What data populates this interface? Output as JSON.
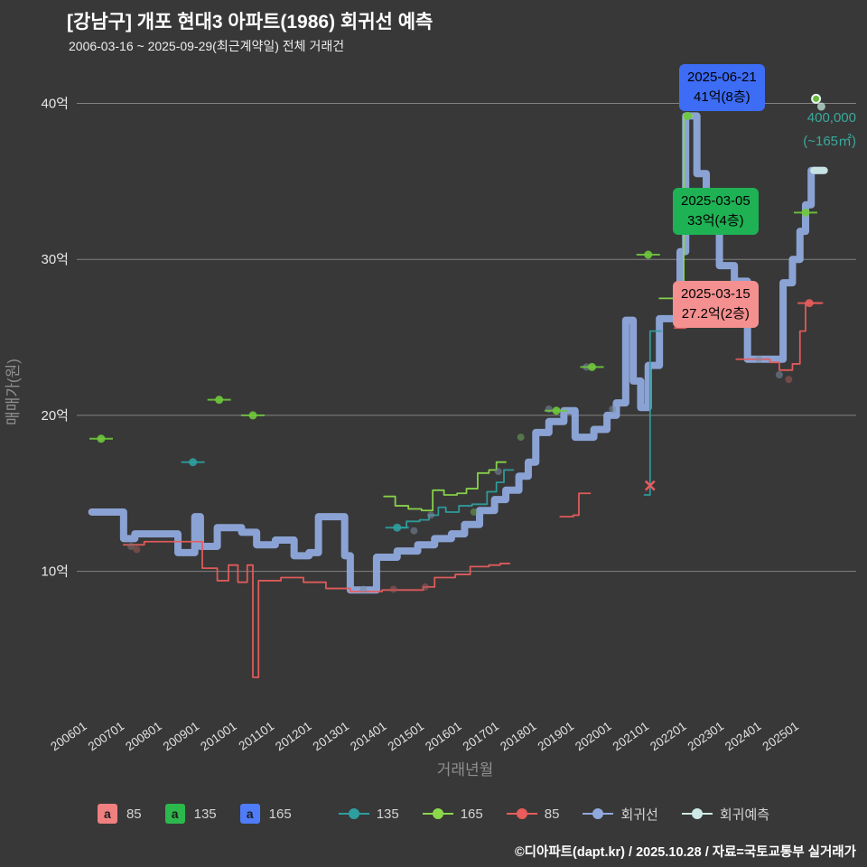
{
  "header": {
    "title": "[강남구] 개포 현대3 아파트(1986) 회귀선 예측",
    "subtitle": "2006-03-16 ~ 2025-09-29(최근계약일) 전체 거래건"
  },
  "annotations": {
    "blue": {
      "date": "2025-06-21",
      "price": "41억(8층)",
      "color": "#3d6cf5"
    },
    "green": {
      "date": "2025-03-05",
      "price": "33억(4층)",
      "color": "#1fb254"
    },
    "red": {
      "date": "2025-03-15",
      "price": "27.2억(2층)",
      "color": "#f59090"
    },
    "note": {
      "line1": "400,000",
      "line2": "(~165㎡)",
      "color": "#3aa99b"
    }
  },
  "legend": {
    "squares": [
      {
        "letter": "a",
        "label": "85",
        "color": "#f08080"
      },
      {
        "letter": "a",
        "label": "135",
        "color": "#2db84d"
      },
      {
        "letter": "a",
        "label": "165",
        "color": "#4f7df9"
      }
    ],
    "lines": [
      {
        "label": "135",
        "color": "#2e9e9e"
      },
      {
        "label": "165",
        "color": "#8bd84a"
      },
      {
        "label": "85",
        "color": "#e85c5c"
      },
      {
        "label": "회귀선",
        "color": "#8fa9dc"
      },
      {
        "label": "회귀예측",
        "color": "#cdeae6"
      }
    ]
  },
  "footer": {
    "text": "©디아파트(dapt.kr) / 2025.10.28 / 자료=국토교통부 실거래가"
  },
  "chart_data": {
    "type": "line",
    "title": "[강남구] 개포 현대3 아파트(1986) 회귀선 예측",
    "xlabel": "거래년월",
    "ylabel": "매매가(원)",
    "x_domain": [
      2005.75,
      2026.55
    ],
    "y_domain": [
      1,
      42
    ],
    "grid": "horizontal",
    "y_ticks": [
      {
        "v": 10,
        "label": "10억"
      },
      {
        "v": 20,
        "label": "20억"
      },
      {
        "v": 30,
        "label": "30억"
      },
      {
        "v": 40,
        "label": "40억"
      }
    ],
    "x_ticks": [
      {
        "v": 2006.04,
        "label": "200601"
      },
      {
        "v": 2007.04,
        "label": "200701"
      },
      {
        "v": 2008.04,
        "label": "200801"
      },
      {
        "v": 2009.04,
        "label": "200901"
      },
      {
        "v": 2010.04,
        "label": "201001"
      },
      {
        "v": 2011.04,
        "label": "201101"
      },
      {
        "v": 2012.04,
        "label": "201201"
      },
      {
        "v": 2013.04,
        "label": "201301"
      },
      {
        "v": 2014.04,
        "label": "201401"
      },
      {
        "v": 2015.04,
        "label": "201501"
      },
      {
        "v": 2016.04,
        "label": "201601"
      },
      {
        "v": 2017.04,
        "label": "201701"
      },
      {
        "v": 2018.04,
        "label": "201801"
      },
      {
        "v": 2019.04,
        "label": "201901"
      },
      {
        "v": 2020.04,
        "label": "202001"
      },
      {
        "v": 2021.04,
        "label": "202101"
      },
      {
        "v": 2022.04,
        "label": "202201"
      },
      {
        "v": 2023.04,
        "label": "202301"
      },
      {
        "v": 2024.04,
        "label": "202401"
      },
      {
        "v": 2025.04,
        "label": "202501"
      }
    ],
    "series": [
      {
        "name": "회귀선",
        "color": "#8fa9dc",
        "width": 8,
        "step": true,
        "opacity": 0.95,
        "segments": [
          [
            [
              2006.15,
              13.8
            ],
            [
              2006.95,
              13.8
            ],
            [
              2007.0,
              12.1
            ],
            [
              2007.3,
              12.4
            ],
            [
              2008.35,
              12.4
            ],
            [
              2008.45,
              11.2
            ],
            [
              2008.8,
              11.2
            ],
            [
              2008.9,
              13.5
            ],
            [
              2009.05,
              11.6
            ],
            [
              2009.5,
              12.8
            ],
            [
              2010.05,
              12.8
            ],
            [
              2010.15,
              12.5
            ],
            [
              2010.55,
              11.7
            ],
            [
              2011.05,
              12.0
            ],
            [
              2011.55,
              11.0
            ],
            [
              2011.95,
              11.2
            ],
            [
              2012.2,
              13.5
            ],
            [
              2012.75,
              13.5
            ],
            [
              2012.9,
              11.0
            ],
            [
              2013.05,
              8.8
            ],
            [
              2013.6,
              8.8
            ],
            [
              2013.75,
              10.9
            ],
            [
              2014.3,
              11.3
            ],
            [
              2014.85,
              11.7
            ],
            [
              2015.3,
              12.1
            ],
            [
              2015.75,
              12.4
            ],
            [
              2016.1,
              13.0
            ],
            [
              2016.5,
              13.9
            ],
            [
              2016.9,
              14.6
            ],
            [
              2017.2,
              15.2
            ],
            [
              2017.55,
              16.1
            ],
            [
              2017.8,
              17.0
            ],
            [
              2018.0,
              18.9
            ],
            [
              2018.35,
              19.6
            ],
            [
              2018.75,
              20.3
            ],
            [
              2019.05,
              18.6
            ],
            [
              2019.55,
              19.1
            ],
            [
              2019.9,
              20.0
            ],
            [
              2020.15,
              20.8
            ],
            [
              2020.4,
              26.1
            ],
            [
              2020.6,
              22.2
            ],
            [
              2020.8,
              20.5
            ],
            [
              2021.0,
              23.2
            ],
            [
              2021.3,
              26.2
            ],
            [
              2021.6,
              26.2
            ],
            [
              2021.85,
              30.5
            ],
            [
              2022.0,
              39.2
            ],
            [
              2022.3,
              35.5
            ],
            [
              2022.55,
              33.2
            ],
            [
              2022.9,
              29.6
            ],
            [
              2023.3,
              28.6
            ],
            [
              2023.65,
              23.6
            ],
            [
              2024.45,
              23.6
            ],
            [
              2024.6,
              28.5
            ],
            [
              2024.85,
              30.0
            ],
            [
              2025.05,
              31.8
            ],
            [
              2025.2,
              33.5
            ],
            [
              2025.35,
              35.7
            ],
            [
              2025.68,
              35.7
            ]
          ]
        ]
      },
      {
        "name": "회귀예측",
        "color": "#cdeae6",
        "width": 8,
        "step": true,
        "opacity": 0.9,
        "segments": [
          [
            [
              2025.42,
              35.7
            ],
            [
              2025.7,
              35.7
            ]
          ]
        ]
      },
      {
        "name": "135",
        "color": "#2e9e9e",
        "width": 1.8,
        "step": true,
        "segments": [
          [
            [
              2014.2,
              12.8
            ],
            [
              2014.55,
              13.2
            ],
            [
              2014.9,
              13.3
            ],
            [
              2015.15,
              13.6
            ],
            [
              2015.4,
              14.1
            ],
            [
              2015.6,
              13.8
            ],
            [
              2015.95,
              14.2
            ],
            [
              2016.3,
              14.3
            ],
            [
              2016.7,
              15.1
            ],
            [
              2016.95,
              15.7
            ],
            [
              2017.15,
              16.5
            ],
            [
              2017.4,
              16.5
            ]
          ],
          [
            [
              2020.9,
              14.9
            ],
            [
              2021.05,
              25.4
            ],
            [
              2021.35,
              25.4
            ]
          ]
        ]
      },
      {
        "name": "165",
        "color": "#8bd84a",
        "width": 1.8,
        "step": true,
        "segments": [
          [
            [
              2013.95,
              14.8
            ],
            [
              2014.25,
              14.2
            ],
            [
              2014.6,
              14.0
            ],
            [
              2014.95,
              13.9
            ],
            [
              2015.25,
              15.2
            ],
            [
              2015.55,
              14.9
            ],
            [
              2015.9,
              15.0
            ],
            [
              2016.15,
              15.3
            ],
            [
              2016.45,
              16.3
            ],
            [
              2016.75,
              16.5
            ],
            [
              2016.95,
              17.0
            ],
            [
              2017.2,
              17.0
            ]
          ],
          [
            [
              2021.3,
              27.5
            ],
            [
              2021.95,
              39.2
            ],
            [
              2022.2,
              39.2
            ]
          ]
        ]
      },
      {
        "name": "85",
        "color": "#e85c5c",
        "width": 1.8,
        "step": true,
        "segments": [
          [
            [
              2007.0,
              11.7
            ],
            [
              2007.55,
              11.9
            ],
            [
              2008.2,
              11.9
            ],
            [
              2009.1,
              10.2
            ],
            [
              2009.5,
              9.4
            ],
            [
              2009.8,
              10.4
            ],
            [
              2010.05,
              9.3
            ],
            [
              2010.3,
              10.4
            ],
            [
              2010.45,
              3.2
            ],
            [
              2010.6,
              9.4
            ],
            [
              2011.2,
              9.6
            ],
            [
              2011.8,
              9.3
            ],
            [
              2012.4,
              8.9
            ],
            [
              2013.05,
              8.7
            ],
            [
              2013.9,
              8.8
            ],
            [
              2014.6,
              8.8
            ],
            [
              2015.0,
              9.0
            ],
            [
              2015.3,
              9.6
            ],
            [
              2015.85,
              9.8
            ],
            [
              2016.25,
              10.3
            ],
            [
              2016.75,
              10.4
            ],
            [
              2017.05,
              10.5
            ],
            [
              2017.3,
              10.5
            ]
          ],
          [
            [
              2018.65,
              13.5
            ],
            [
              2019.0,
              13.6
            ],
            [
              2019.15,
              15.0
            ],
            [
              2019.45,
              15.0
            ]
          ],
          [
            [
              2021.7,
              25.6
            ],
            [
              2022.0,
              25.7
            ],
            [
              2022.35,
              25.7
            ]
          ],
          [
            [
              2023.35,
              23.6
            ],
            [
              2023.95,
              23.6
            ],
            [
              2024.25,
              23.4
            ],
            [
              2024.5,
              22.9
            ],
            [
              2024.85,
              23.3
            ],
            [
              2025.05,
              25.4
            ],
            [
              2025.2,
              27.2
            ],
            [
              2025.65,
              27.2
            ]
          ]
        ]
      }
    ],
    "markers": [
      {
        "x": 2006.4,
        "v": 18.5,
        "color": "#6fc83c",
        "dash": true
      },
      {
        "x": 2008.85,
        "v": 17.0,
        "color": "#2e9e9e",
        "dash": true
      },
      {
        "x": 2009.55,
        "v": 21.0,
        "color": "#6fc83c",
        "dash": true
      },
      {
        "x": 2010.45,
        "v": 20.0,
        "color": "#6fc83c",
        "dash": true
      },
      {
        "x": 2014.3,
        "v": 12.8,
        "color": "#2e9e9e",
        "dash": true
      },
      {
        "x": 2018.55,
        "v": 20.3,
        "color": "#6fc83c",
        "dash": true
      },
      {
        "x": 2019.5,
        "v": 23.1,
        "color": "#6fc83c",
        "dash": true
      },
      {
        "x": 2021.0,
        "v": 30.3,
        "color": "#6fc83c",
        "dash": true
      },
      {
        "x": 2021.05,
        "v": 15.5,
        "color": "#e85c5c",
        "shape": "x"
      },
      {
        "x": 2022.05,
        "v": 39.2,
        "color": "#6fc83c"
      },
      {
        "x": 2025.2,
        "v": 33.0,
        "color": "#6fc83c",
        "dash": true
      },
      {
        "x": 2025.3,
        "v": 27.2,
        "color": "#e85c5c",
        "dash": true
      },
      {
        "x": 2025.48,
        "v": 40.3,
        "color": "#6fc83c",
        "ring": true
      },
      {
        "x": 2025.62,
        "v": 39.8,
        "color": "#b9ddcf",
        "opacity": 0.8
      }
    ],
    "scatter": [
      {
        "x": 2007.2,
        "v": 11.6,
        "color": "#8d6b6b"
      },
      {
        "x": 2007.35,
        "v": 11.4,
        "color": "#a05a5a"
      },
      {
        "x": 2013.4,
        "v": 8.85,
        "color": "#7a8aa0"
      },
      {
        "x": 2014.2,
        "v": 8.85,
        "color": "#a05a5a"
      },
      {
        "x": 2014.75,
        "v": 12.6,
        "color": "#7a8aa0"
      },
      {
        "x": 2015.05,
        "v": 9.0,
        "color": "#a05a5a"
      },
      {
        "x": 2015.2,
        "v": 13.6,
        "color": "#7a8aa0"
      },
      {
        "x": 2016.35,
        "v": 13.8,
        "color": "#6da75a"
      },
      {
        "x": 2017.0,
        "v": 16.4,
        "color": "#7a8aa0"
      },
      {
        "x": 2017.6,
        "v": 18.6,
        "color": "#6da75a"
      },
      {
        "x": 2018.35,
        "v": 20.4,
        "color": "#7a8aa0"
      },
      {
        "x": 2019.35,
        "v": 23.1,
        "color": "#7a8aa0"
      },
      {
        "x": 2020.05,
        "v": 20.4,
        "color": "#7a8aa0"
      },
      {
        "x": 2022.5,
        "v": 33.3,
        "color": "#7a8aa0"
      },
      {
        "x": 2023.95,
        "v": 23.6,
        "color": "#7a8aa0"
      },
      {
        "x": 2024.5,
        "v": 22.6,
        "color": "#7a8aa0"
      },
      {
        "x": 2024.75,
        "v": 22.3,
        "color": "#a05a5a"
      }
    ]
  }
}
